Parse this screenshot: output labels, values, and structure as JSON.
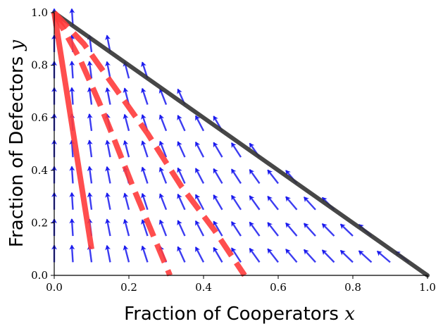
{
  "chart_data": {
    "type": "line",
    "xlabel": "Fraction of Cooperators",
    "xlabel_var": "x",
    "ylabel": "Fraction of Defectors",
    "ylabel_var": "y",
    "xlim": [
      0,
      1
    ],
    "ylim": [
      0,
      1
    ],
    "x_ticks": [
      "0.0",
      "0.2",
      "0.4",
      "0.6",
      "0.8",
      "1.0"
    ],
    "y_ticks": [
      "0.0",
      "0.2",
      "0.4",
      "0.6",
      "0.8",
      "1.0"
    ],
    "grid": false,
    "colors": {
      "field": "#1a1aee",
      "trajectory": "#ff3b3b",
      "boundary": "#333333"
    },
    "boundary": {
      "x": [
        0,
        1
      ],
      "y": [
        1,
        0
      ]
    },
    "series": [
      {
        "style": "solid",
        "x": [
          0.0,
          0.1
        ],
        "y": [
          1.0,
          0.1
        ]
      },
      {
        "style": "dashed",
        "x": [
          0.0,
          0.07,
          0.12,
          0.16,
          0.21,
          0.26,
          0.31
        ],
        "y": [
          1.0,
          0.82,
          0.66,
          0.52,
          0.34,
          0.17,
          0.0
        ]
      },
      {
        "style": "dashed",
        "x": [
          0.0,
          0.08,
          0.16,
          0.25,
          0.34,
          0.43,
          0.51
        ],
        "y": [
          1.0,
          0.88,
          0.72,
          0.54,
          0.34,
          0.17,
          0.0
        ]
      }
    ],
    "vector_field": {
      "x_step": 0.05,
      "y_rows": [
        0.05,
        0.15,
        0.25,
        0.35,
        0.45,
        0.55,
        0.65,
        0.75,
        0.85,
        0.95
      ]
    }
  }
}
